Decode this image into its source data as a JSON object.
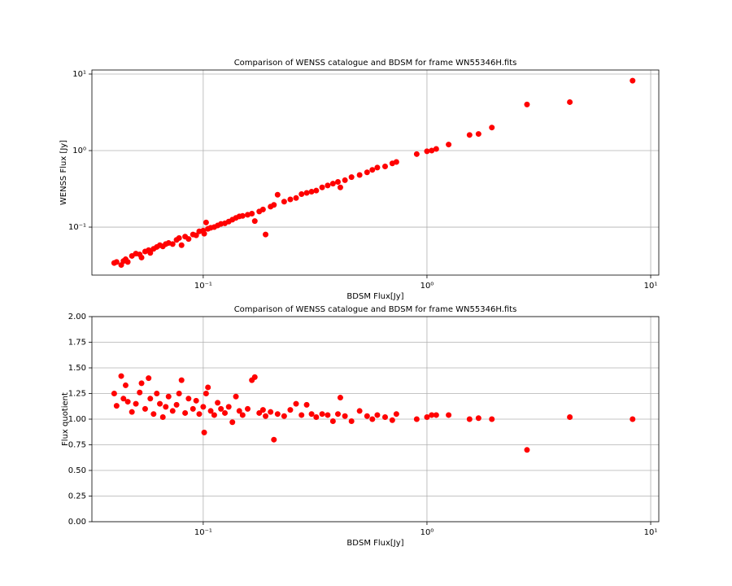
{
  "chart_data": [
    {
      "type": "scatter",
      "title": "Comparison of WENSS catalogue and BDSM for frame WN55346H.fits",
      "xlabel": "BDSM Flux[Jy]",
      "ylabel": "WENSS Flux [Jy]",
      "color": "#ff0000",
      "xlog": true,
      "ylog": true,
      "grid": true,
      "xlim": [
        0.0318,
        10.87
      ],
      "ylim": [
        0.0236,
        11.3
      ],
      "xticks": [
        {
          "value": 0.1,
          "label": "10⁻¹"
        },
        {
          "value": 1,
          "label": "10⁰"
        },
        {
          "value": 10,
          "label": "10¹"
        }
      ],
      "yticks": [
        {
          "value": 0.1,
          "label": "10⁻¹"
        },
        {
          "value": 1,
          "label": "10⁰"
        },
        {
          "value": 10,
          "label": "10¹"
        }
      ],
      "x": [
        0.04,
        0.041,
        0.043,
        0.044,
        0.045,
        0.046,
        0.048,
        0.05,
        0.052,
        0.053,
        0.055,
        0.057,
        0.058,
        0.06,
        0.062,
        0.064,
        0.066,
        0.068,
        0.07,
        0.073,
        0.076,
        0.078,
        0.08,
        0.083,
        0.086,
        0.09,
        0.093,
        0.096,
        0.1,
        0.101,
        0.103,
        0.105,
        0.108,
        0.112,
        0.116,
        0.12,
        0.125,
        0.13,
        0.135,
        0.14,
        0.145,
        0.15,
        0.158,
        0.165,
        0.17,
        0.178,
        0.185,
        0.19,
        0.2,
        0.207,
        0.215,
        0.23,
        0.245,
        0.26,
        0.275,
        0.29,
        0.305,
        0.32,
        0.34,
        0.36,
        0.38,
        0.4,
        0.41,
        0.43,
        0.46,
        0.5,
        0.54,
        0.57,
        0.6,
        0.65,
        0.7,
        0.73,
        0.9,
        1.0,
        1.05,
        1.1,
        1.25,
        1.55,
        1.7,
        1.95,
        2.8,
        4.35,
        8.3
      ],
      "values": [
        0.034,
        0.035,
        0.032,
        0.036,
        0.038,
        0.035,
        0.042,
        0.045,
        0.044,
        0.04,
        0.048,
        0.05,
        0.046,
        0.052,
        0.055,
        0.058,
        0.056,
        0.06,
        0.062,
        0.06,
        0.068,
        0.072,
        0.058,
        0.075,
        0.07,
        0.08,
        0.078,
        0.088,
        0.09,
        0.082,
        0.115,
        0.095,
        0.098,
        0.1,
        0.105,
        0.11,
        0.112,
        0.118,
        0.125,
        0.132,
        0.138,
        0.14,
        0.145,
        0.15,
        0.12,
        0.16,
        0.17,
        0.08,
        0.185,
        0.195,
        0.265,
        0.215,
        0.23,
        0.24,
        0.27,
        0.28,
        0.29,
        0.3,
        0.33,
        0.35,
        0.37,
        0.39,
        0.33,
        0.41,
        0.45,
        0.48,
        0.52,
        0.56,
        0.6,
        0.62,
        0.68,
        0.71,
        0.9,
        0.98,
        1.0,
        1.05,
        1.2,
        1.6,
        1.65,
        2.0,
        4.0,
        4.3,
        8.2
      ]
    },
    {
      "type": "scatter",
      "title": "Comparison of WENSS catalogue and BDSM for frame WN55346H.fits",
      "xlabel": "BDSM Flux[Jy]",
      "ylabel": "Flux quotient",
      "color": "#ff0000",
      "xlog": true,
      "ylog": false,
      "grid": true,
      "xlim": [
        0.0318,
        10.87
      ],
      "ylim": [
        0,
        2
      ],
      "xticks": [
        {
          "value": 0.1,
          "label": "10⁻¹"
        },
        {
          "value": 1,
          "label": "10⁰"
        },
        {
          "value": 10,
          "label": "10¹"
        }
      ],
      "yticks": [
        {
          "value": 0,
          "label": "0.00"
        },
        {
          "value": 0.25,
          "label": "0.25"
        },
        {
          "value": 0.5,
          "label": "0.50"
        },
        {
          "value": 0.75,
          "label": "0.75"
        },
        {
          "value": 1,
          "label": "1.00"
        },
        {
          "value": 1.25,
          "label": "1.25"
        },
        {
          "value": 1.5,
          "label": "1.50"
        },
        {
          "value": 1.75,
          "label": "1.75"
        },
        {
          "value": 2,
          "label": "2.00"
        }
      ],
      "x": [
        0.04,
        0.041,
        0.043,
        0.044,
        0.045,
        0.046,
        0.048,
        0.05,
        0.052,
        0.053,
        0.055,
        0.057,
        0.058,
        0.06,
        0.062,
        0.064,
        0.066,
        0.068,
        0.07,
        0.073,
        0.076,
        0.078,
        0.08,
        0.083,
        0.086,
        0.09,
        0.093,
        0.096,
        0.1,
        0.101,
        0.103,
        0.105,
        0.108,
        0.112,
        0.116,
        0.12,
        0.125,
        0.13,
        0.135,
        0.14,
        0.145,
        0.15,
        0.158,
        0.165,
        0.17,
        0.178,
        0.185,
        0.19,
        0.2,
        0.207,
        0.215,
        0.23,
        0.245,
        0.26,
        0.275,
        0.29,
        0.305,
        0.32,
        0.34,
        0.36,
        0.38,
        0.4,
        0.41,
        0.43,
        0.46,
        0.5,
        0.54,
        0.57,
        0.6,
        0.65,
        0.7,
        0.73,
        0.9,
        1.0,
        1.05,
        1.1,
        1.25,
        1.55,
        1.7,
        1.95,
        2.8,
        4.35,
        8.3
      ],
      "values": [
        1.25,
        1.13,
        1.42,
        1.2,
        1.33,
        1.17,
        1.07,
        1.15,
        1.26,
        1.35,
        1.1,
        1.4,
        1.2,
        1.05,
        1.25,
        1.15,
        1.02,
        1.12,
        1.22,
        1.08,
        1.14,
        1.25,
        1.38,
        1.06,
        1.2,
        1.1,
        1.18,
        1.05,
        1.12,
        0.87,
        1.25,
        1.31,
        1.08,
        1.04,
        1.16,
        1.1,
        1.06,
        1.12,
        0.97,
        1.22,
        1.08,
        1.04,
        1.1,
        1.38,
        1.41,
        1.06,
        1.09,
        1.03,
        1.07,
        0.8,
        1.05,
        1.03,
        1.09,
        1.15,
        1.04,
        1.14,
        1.05,
        1.02,
        1.05,
        1.04,
        0.98,
        1.05,
        1.21,
        1.03,
        0.98,
        1.08,
        1.03,
        1.0,
        1.04,
        1.02,
        0.99,
        1.05,
        1.0,
        1.02,
        1.04,
        1.04,
        1.04,
        1.0,
        1.01,
        1.0,
        0.7,
        1.02,
        1.0
      ]
    }
  ]
}
